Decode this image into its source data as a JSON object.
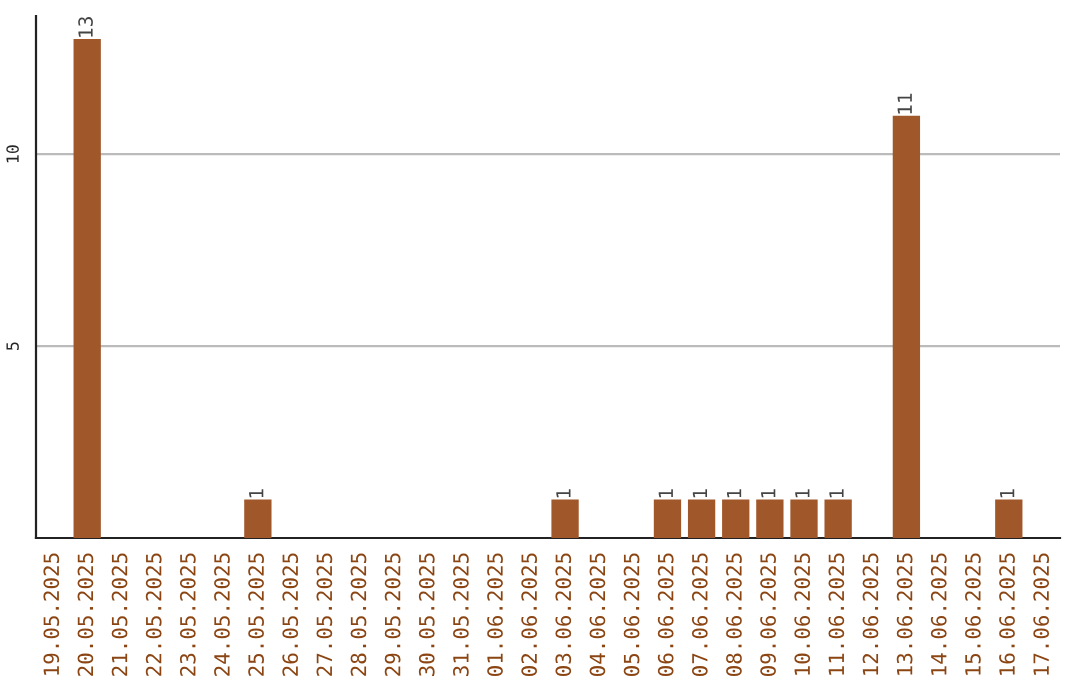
{
  "chart_data": {
    "type": "bar",
    "categories": [
      "19.05.2025",
      "20.05.2025",
      "21.05.2025",
      "22.05.2025",
      "23.05.2025",
      "24.05.2025",
      "25.05.2025",
      "26.05.2025",
      "27.05.2025",
      "28.05.2025",
      "29.05.2025",
      "30.05.2025",
      "31.05.2025",
      "01.06.2025",
      "02.06.2025",
      "03.06.2025",
      "04.06.2025",
      "05.06.2025",
      "06.06.2025",
      "07.06.2025",
      "08.06.2025",
      "09.06.2025",
      "10.06.2025",
      "11.06.2025",
      "12.06.2025",
      "13.06.2025",
      "14.06.2025",
      "15.06.2025",
      "16.06.2025",
      "17.06.2025"
    ],
    "values": [
      0,
      13,
      0,
      0,
      0,
      0,
      1,
      0,
      0,
      0,
      0,
      0,
      0,
      0,
      0,
      1,
      0,
      0,
      1,
      1,
      1,
      1,
      1,
      1,
      0,
      11,
      0,
      0,
      1,
      0
    ],
    "value_labels": [
      null,
      "13",
      null,
      null,
      null,
      null,
      "1",
      null,
      null,
      null,
      null,
      null,
      null,
      null,
      null,
      "1",
      null,
      null,
      "1",
      "1",
      "1",
      "1",
      "1",
      "1",
      null,
      "11",
      null,
      null,
      "1",
      null
    ],
    "color": "#a0572a",
    "ylim": [
      0,
      13.6
    ],
    "yticks": [
      5,
      10
    ],
    "grid": "y"
  }
}
